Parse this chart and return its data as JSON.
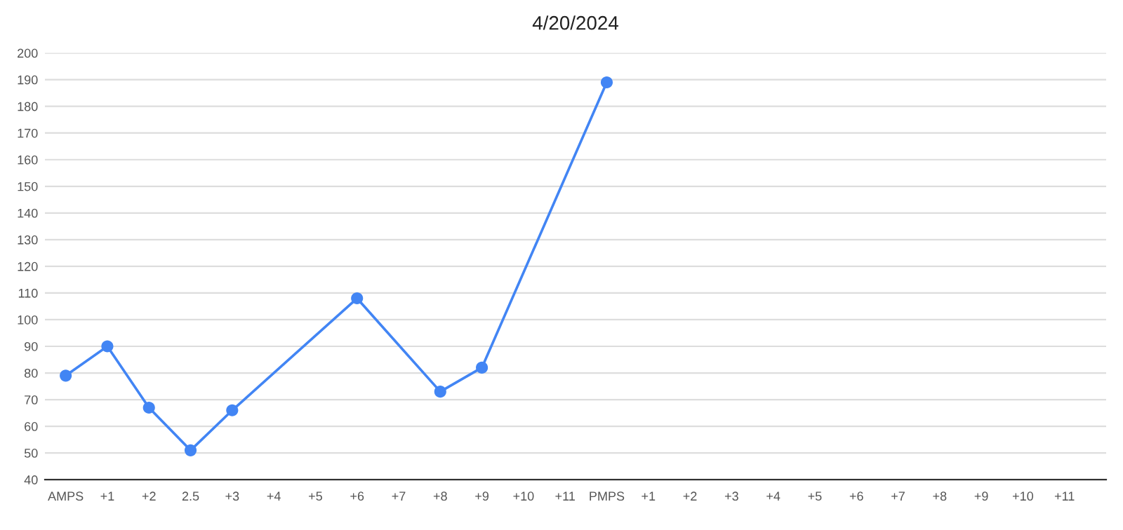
{
  "chart_data": {
    "type": "line",
    "title": "4/20/2024",
    "categories": [
      "AMPS",
      "+1",
      "+2",
      "2.5",
      "+3",
      "+4",
      "+5",
      "+6",
      "+7",
      "+8",
      "+9",
      "+10",
      "+11",
      "PMPS",
      "+1",
      "+2",
      "+3",
      "+4",
      "+5",
      "+6",
      "+7",
      "+8",
      "+9",
      "+10",
      "+11"
    ],
    "series": [
      {
        "color": "#4285f4",
        "values": [
          79,
          90,
          67,
          51,
          66,
          null,
          null,
          108,
          null,
          73,
          82,
          null,
          null,
          189,
          null,
          null,
          null,
          null,
          null,
          null,
          null,
          null,
          null,
          null,
          null
        ]
      }
    ],
    "ylim": [
      40,
      200
    ],
    "yticks": [
      40,
      50,
      60,
      70,
      80,
      90,
      100,
      110,
      120,
      130,
      140,
      150,
      160,
      170,
      180,
      190,
      200
    ],
    "grid": "y",
    "marker": "circle",
    "line_style": "solid",
    "legend": false
  }
}
